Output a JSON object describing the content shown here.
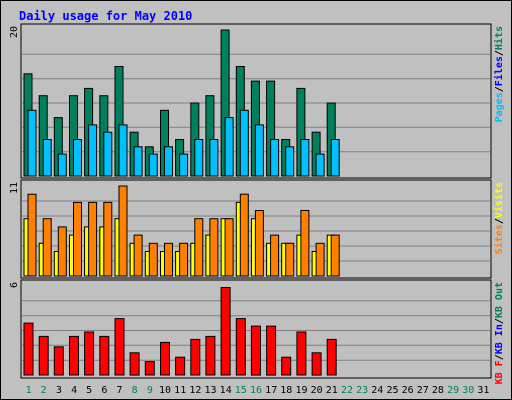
{
  "chart_data": {
    "type": "bar",
    "title": "Daily usage for May 2010",
    "x": [
      "1",
      "2",
      "3",
      "4",
      "5",
      "6",
      "7",
      "8",
      "9",
      "10",
      "11",
      "12",
      "13",
      "14",
      "15",
      "16",
      "17",
      "18",
      "19",
      "20",
      "21",
      "22",
      "23",
      "24",
      "25",
      "26",
      "27",
      "28",
      "29",
      "30",
      "31"
    ],
    "weekend_days": [
      "1",
      "2",
      "8",
      "9",
      "15",
      "16",
      "22",
      "23",
      "29",
      "30"
    ],
    "colors": {
      "hits": "#00805c",
      "files": "#00c0ff",
      "sites": "#ff8000",
      "visits": "#ffff00",
      "kbf": "#ff0000",
      "kbin": "#0000ff",
      "kbout": "#00805c",
      "weekend": "#00805c",
      "weekday": "#000000",
      "title": "#0000ff"
    },
    "panels": [
      {
        "id": "hits-files",
        "ymax": 20,
        "ymax_label": "20",
        "legend": [
          {
            "label": "Pages",
            "color": "#00c0ff"
          },
          {
            "label": "Files",
            "color": "#0000ff"
          },
          {
            "label": "Hits",
            "color": "#00805c"
          }
        ],
        "legend_separator": "/",
        "series": [
          {
            "key": "hits",
            "values": [
              14,
              11,
              8,
              11,
              12,
              11,
              15,
              6,
              4,
              9,
              5,
              10,
              11,
              20,
              15,
              13,
              13,
              5,
              12,
              6,
              10,
              0,
              0,
              0,
              0,
              0,
              0,
              0,
              0,
              0,
              0
            ]
          },
          {
            "key": "files",
            "values": [
              9,
              5,
              3,
              5,
              7,
              6,
              7,
              4,
              3,
              4,
              3,
              5,
              5,
              8,
              9,
              7,
              5,
              4,
              5,
              3,
              5,
              0,
              0,
              0,
              0,
              0,
              0,
              0,
              0,
              0,
              0
            ]
          }
        ]
      },
      {
        "id": "sites-visits",
        "ymax": 11,
        "ymax_label": "11",
        "legend": [
          {
            "label": "Sites",
            "color": "#ff8000"
          },
          {
            "label": "Visits",
            "color": "#ffff00"
          }
        ],
        "legend_separator": "/",
        "series": [
          {
            "key": "visits",
            "values": [
              7,
              4,
              3,
              5,
              6,
              6,
              7,
              4,
              3,
              3,
              3,
              4,
              5,
              7,
              9,
              7,
              4,
              4,
              5,
              3,
              5,
              0,
              0,
              0,
              0,
              0,
              0,
              0,
              0,
              0,
              0
            ]
          },
          {
            "key": "sites",
            "values": [
              10,
              7,
              6,
              9,
              9,
              9,
              11,
              5,
              4,
              4,
              4,
              7,
              7,
              7,
              10,
              8,
              5,
              4,
              8,
              4,
              5,
              0,
              0,
              0,
              0,
              0,
              0,
              0,
              0,
              0,
              0
            ]
          }
        ]
      },
      {
        "id": "kbytes",
        "ymax": 6,
        "ymax_label": "6",
        "legend": [
          {
            "label": "KB F",
            "color": "#ff0000"
          },
          {
            "label": "KB In",
            "color": "#0000ff"
          },
          {
            "label": "KB Out",
            "color": "#00805c"
          }
        ],
        "legend_separator": "/",
        "series": [
          {
            "key": "kbf",
            "values": [
              3.5,
              2.6,
              1.9,
              2.6,
              2.9,
              2.6,
              3.8,
              1.5,
              0.9,
              2.2,
              1.2,
              2.4,
              2.6,
              5.9,
              3.8,
              3.3,
              3.3,
              1.2,
              2.9,
              1.5,
              2.4,
              0,
              0,
              0,
              0,
              0,
              0,
              0,
              0,
              0,
              0
            ]
          }
        ]
      }
    ]
  }
}
